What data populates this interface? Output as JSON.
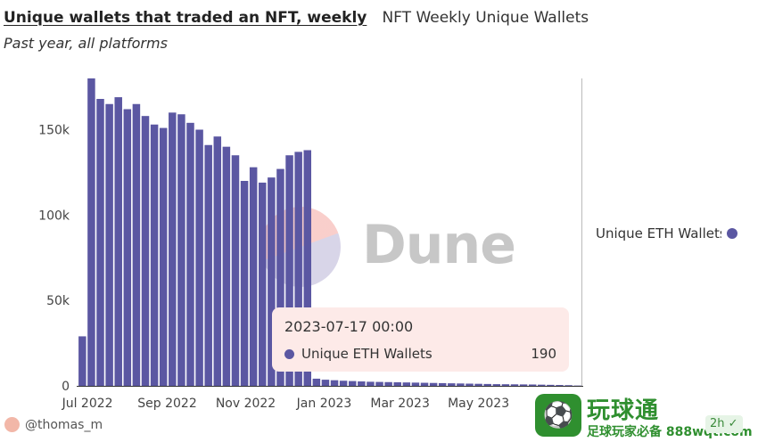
{
  "header": {
    "title": "Unique wallets that traded an NFT, weekly",
    "query_name": "NFT Weekly Unique Wallets",
    "subtitle": "Past year, all platforms"
  },
  "watermark": {
    "text": "Dune"
  },
  "legend": {
    "label": "Unique ETH Wallets"
  },
  "tooltip": {
    "date": "2023-07-17 00:00",
    "series": "Unique ETH Wallets",
    "value": "190"
  },
  "footer": {
    "author": "@thomas_m",
    "promo_icon": "soccer-player-icon",
    "promo_title": "玩球通",
    "promo_sub": "足球玩家必备 888wqt.com",
    "age": "2h"
  },
  "colors": {
    "bar": "#5b57a2",
    "tooltip_bg": "#fdeae8",
    "promo": "#2f8f2f"
  },
  "chart_data": {
    "type": "bar",
    "series": [
      {
        "name": "Unique ETH Wallets",
        "x": [
          "2022-06-27",
          "2022-07-04",
          "2022-07-11",
          "2022-07-18",
          "2022-07-25",
          "2022-08-01",
          "2022-08-08",
          "2022-08-15",
          "2022-08-22",
          "2022-08-29",
          "2022-09-05",
          "2022-09-12",
          "2022-09-19",
          "2022-09-26",
          "2022-10-03",
          "2022-10-10",
          "2022-10-17",
          "2022-10-24",
          "2022-10-31",
          "2022-11-07",
          "2022-11-14",
          "2022-11-21",
          "2022-11-28",
          "2022-12-05",
          "2022-12-12",
          "2022-12-19",
          "2022-12-26",
          "2023-01-02",
          "2023-01-09",
          "2023-01-16",
          "2023-01-23",
          "2023-01-30",
          "2023-02-06",
          "2023-02-13",
          "2023-02-20",
          "2023-02-27",
          "2023-03-06",
          "2023-03-13",
          "2023-03-20",
          "2023-03-27",
          "2023-04-03",
          "2023-04-10",
          "2023-04-17",
          "2023-04-24",
          "2023-05-01",
          "2023-05-08",
          "2023-05-15",
          "2023-05-22",
          "2023-05-29",
          "2023-06-05",
          "2023-06-12",
          "2023-06-19",
          "2023-06-26",
          "2023-07-03",
          "2023-07-10",
          "2023-07-17"
        ],
        "values": [
          29000,
          180000,
          168000,
          165000,
          169000,
          162000,
          165000,
          158000,
          153000,
          151000,
          160000,
          159000,
          154000,
          150000,
          141000,
          146000,
          140000,
          135000,
          120000,
          128000,
          119000,
          122000,
          127000,
          135000,
          137000,
          138000,
          4200,
          3600,
          3300,
          3000,
          2800,
          2600,
          2400,
          2300,
          2200,
          2100,
          2000,
          1900,
          1800,
          1700,
          1600,
          1500,
          1400,
          1300,
          1200,
          1100,
          1000,
          950,
          900,
          850,
          800,
          700,
          600,
          500,
          400,
          190
        ]
      }
    ],
    "x_ticks": [
      "Jul 2022",
      "Sep 2022",
      "Nov 2022",
      "Jan 2023",
      "Mar 2023",
      "May 2023"
    ],
    "x_tick_dates": [
      "2022-07-01",
      "2022-09-01",
      "2022-11-01",
      "2023-01-01",
      "2023-03-01",
      "2023-05-01"
    ],
    "y_ticks": [
      "0",
      "50k",
      "100k",
      "150k"
    ],
    "y_tick_values": [
      0,
      50000,
      100000,
      150000
    ],
    "xlim": [
      "2022-06-24",
      "2023-07-20"
    ],
    "ylim": [
      0,
      180000
    ],
    "grid": false,
    "legend_position": "right"
  }
}
